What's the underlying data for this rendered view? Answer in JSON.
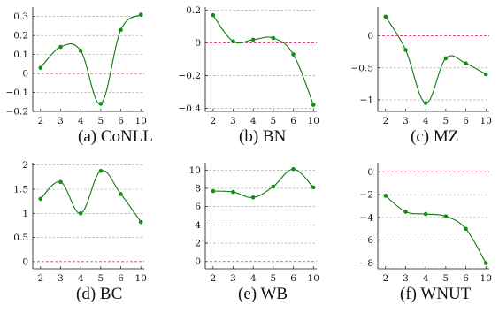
{
  "style": {
    "line_color": "#0f7a0f",
    "point_color": "#0f8f0f",
    "grid_color": "#9a9a9a",
    "zero_line_color": "#e0336b",
    "axis_color": "#111111"
  },
  "chart_data": [
    {
      "type": "line",
      "caption": "(a) CoNLL",
      "grid": "horizontal-dashed",
      "zero_line": "dashed",
      "x": [
        2,
        3,
        4,
        5,
        6,
        10
      ],
      "x_tick_labels": [
        "2",
        "3",
        "4",
        "5",
        "6",
        "10"
      ],
      "y": [
        0.03,
        0.14,
        0.12,
        -0.16,
        0.23,
        0.31
      ],
      "y_ticks": [
        -0.2,
        -0.1,
        0,
        0.1,
        0.2,
        0.3
      ],
      "y_tick_labels": [
        "−0.2",
        "−0.1",
        "0",
        "0.1",
        "0.2",
        "0.3"
      ],
      "ylim": [
        -0.2,
        0.35
      ]
    },
    {
      "type": "line",
      "caption": "(b) BN",
      "grid": "horizontal-dashed",
      "zero_line": "dashed",
      "x": [
        2,
        3,
        4,
        5,
        6,
        10
      ],
      "x_tick_labels": [
        "2",
        "3",
        "4",
        "5",
        "6",
        "10"
      ],
      "y": [
        0.17,
        0.01,
        0.02,
        0.03,
        -0.07,
        -0.38
      ],
      "y_ticks": [
        -0.4,
        -0.2,
        0,
        0.2
      ],
      "y_tick_labels": [
        "−0.4",
        "−0.2",
        "0",
        "0.2"
      ],
      "ylim": [
        -0.42,
        0.22
      ]
    },
    {
      "type": "line",
      "caption": "(c) MZ",
      "grid": "horizontal-dashed",
      "zero_line": "dashed",
      "x": [
        2,
        3,
        4,
        5,
        6,
        10
      ],
      "x_tick_labels": [
        "2",
        "3",
        "4",
        "5",
        "6",
        "10"
      ],
      "y": [
        0.3,
        -0.22,
        -1.05,
        -0.35,
        -0.43,
        -0.6
      ],
      "y_ticks": [
        -1,
        -0.5,
        0
      ],
      "y_tick_labels": [
        "−1",
        "−0.5",
        "0"
      ],
      "ylim": [
        -1.18,
        0.45
      ]
    },
    {
      "type": "line",
      "caption": "(d) BC",
      "grid": "horizontal-dashed",
      "zero_line": "dashed",
      "x": [
        2,
        3,
        4,
        5,
        6,
        10
      ],
      "x_tick_labels": [
        "2",
        "3",
        "4",
        "5",
        "6",
        "10"
      ],
      "y": [
        1.3,
        1.65,
        1.0,
        1.88,
        1.4,
        0.82
      ],
      "y_ticks": [
        0,
        0.5,
        1,
        1.5,
        2
      ],
      "y_tick_labels": [
        "0",
        "0.5",
        "1",
        "1.5",
        "2"
      ],
      "ylim": [
        -0.15,
        2.05
      ]
    },
    {
      "type": "line",
      "caption": "(e) WB",
      "grid": "horizontal-dashed",
      "zero_line": "dashed",
      "x": [
        2,
        3,
        4,
        5,
        6,
        10
      ],
      "x_tick_labels": [
        "2",
        "3",
        "4",
        "5",
        "6",
        "10"
      ],
      "y": [
        7.7,
        7.6,
        7.0,
        8.2,
        10.1,
        8.1
      ],
      "y_ticks": [
        0,
        2,
        4,
        6,
        8,
        10
      ],
      "y_tick_labels": [
        "0",
        "2",
        "4",
        "6",
        "8",
        "10"
      ],
      "ylim": [
        -0.8,
        10.8
      ]
    },
    {
      "type": "line",
      "caption": "(f) WNUT",
      "grid": "horizontal-dashed",
      "zero_line": "dashed",
      "x": [
        2,
        3,
        4,
        5,
        6,
        10
      ],
      "x_tick_labels": [
        "2",
        "3",
        "4",
        "5",
        "6",
        "10"
      ],
      "y": [
        -2.1,
        -3.5,
        -3.7,
        -3.9,
        -5.0,
        -8.0
      ],
      "y_ticks": [
        -8,
        -6,
        -4,
        -2,
        0
      ],
      "y_tick_labels": [
        "−8",
        "−6",
        "−4",
        "−2",
        "0"
      ],
      "ylim": [
        -8.5,
        0.8
      ]
    }
  ]
}
